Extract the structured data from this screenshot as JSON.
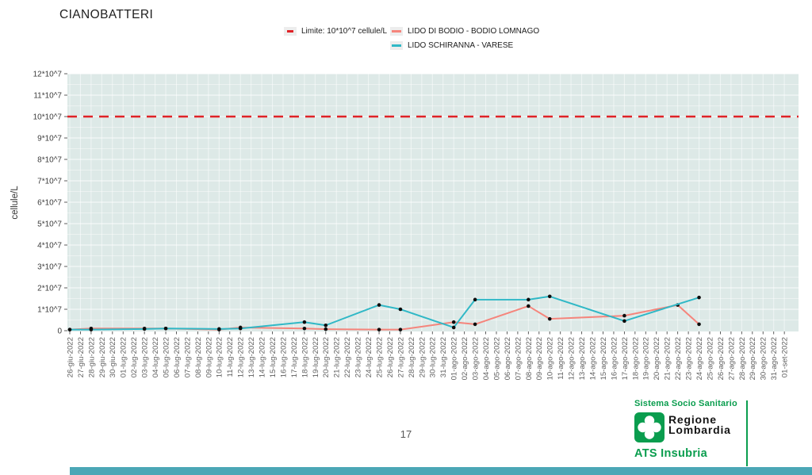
{
  "page": {
    "title": "CIANOBATTERI",
    "page_number": "17"
  },
  "legend": {
    "limit": {
      "label": "Limite: 10*10^7 cellule/L"
    },
    "bodio": {
      "label": "LIDO DI BODIO - BODIO LOMNAGO"
    },
    "schiranna": {
      "label": "LIDO SCHIRANNA - VARESE"
    }
  },
  "footer": {
    "sistema": "Sistema Socio Sanitario",
    "regione_line1": "Regione",
    "regione_line2": "Lombardia",
    "ats": "ATS Insubria",
    "brand_green": "#0a9d4e",
    "bar_teal": "#4ba7b6"
  },
  "chart_data": {
    "type": "line",
    "title": "CIANOBATTERI",
    "ylabel": "cellule/L",
    "y_unit": "values are in 10^7 cellule/L",
    "ylim": [
      0,
      12
    ],
    "yticks": [
      "0",
      "1*10^7",
      "2*10^7",
      "3*10^7",
      "4*10^7",
      "5*10^7",
      "6*10^7",
      "7*10^7",
      "8*10^7",
      "9*10^7",
      "10*10^7",
      "11*10^7",
      "12*10^7"
    ],
    "grid": true,
    "legend_position": "top",
    "plot_bg": "#dde9e7",
    "marker_color": "#0d0d0d",
    "limit": {
      "label": "Limite: 10*10^7 cellule/L",
      "value": 10,
      "color": "#e02227"
    },
    "categories": [
      "26-giu-2022",
      "27-giu-2022",
      "28-giu-2022",
      "29-giu-2022",
      "30-giu-2022",
      "01-lug-2022",
      "02-lug-2022",
      "03-lug-2022",
      "04-lug-2022",
      "05-lug-2022",
      "06-lug-2022",
      "07-lug-2022",
      "08-lug-2022",
      "09-lug-2022",
      "10-lug-2022",
      "11-lug-2022",
      "12-lug-2022",
      "13-lug-2022",
      "14-lug-2022",
      "15-lug-2022",
      "16-lug-2022",
      "17-lug-2022",
      "18-lug-2022",
      "19-lug-2022",
      "20-lug-2022",
      "21-lug-2022",
      "22-lug-2022",
      "23-lug-2022",
      "24-lug-2022",
      "25-lug-2022",
      "26-lug-2022",
      "27-lug-2022",
      "28-lug-2022",
      "29-lug-2022",
      "30-lug-2022",
      "31-lug-2022",
      "01-ago-2022",
      "02-ago-2022",
      "03-ago-2022",
      "04-ago-2022",
      "05-ago-2022",
      "06-ago-2022",
      "07-ago-2022",
      "08-ago-2022",
      "09-ago-2022",
      "10-ago-2022",
      "11-ago-2022",
      "12-ago-2022",
      "13-ago-2022",
      "14-ago-2022",
      "15-ago-2022",
      "16-ago-2022",
      "17-ago-2022",
      "18-ago-2022",
      "19-ago-2022",
      "20-ago-2022",
      "21-ago-2022",
      "22-ago-2022",
      "23-ago-2022",
      "24-ago-2022",
      "25-ago-2022",
      "26-ago-2022",
      "27-ago-2022",
      "28-ago-2022",
      "29-ago-2022",
      "30-ago-2022",
      "31-ago-2022",
      "01-set-2022"
    ],
    "series": [
      {
        "name": "LIDO DI BODIO - BODIO LOMNAGO",
        "color": "#f5857c",
        "points": [
          {
            "date": "26-giu-2022",
            "value": 0.05
          },
          {
            "date": "28-giu-2022",
            "value": 0.1
          },
          {
            "date": "03-lug-2022",
            "value": 0.1
          },
          {
            "date": "05-lug-2022",
            "value": 0.1
          },
          {
            "date": "10-lug-2022",
            "value": 0.05
          },
          {
            "date": "12-lug-2022",
            "value": 0.15
          },
          {
            "date": "18-lug-2022",
            "value": 0.1
          },
          {
            "date": "20-lug-2022",
            "value": 0.07
          },
          {
            "date": "25-lug-2022",
            "value": 0.05
          },
          {
            "date": "27-lug-2022",
            "value": 0.05
          },
          {
            "date": "01-ago-2022",
            "value": 0.4
          },
          {
            "date": "03-ago-2022",
            "value": 0.3
          },
          {
            "date": "08-ago-2022",
            "value": 1.15
          },
          {
            "date": "10-ago-2022",
            "value": 0.55
          },
          {
            "date": "17-ago-2022",
            "value": 0.7
          },
          {
            "date": "22-ago-2022",
            "value": 1.2
          },
          {
            "date": "24-ago-2022",
            "value": 0.3
          }
        ]
      },
      {
        "name": "LIDO SCHIRANNA - VARESE",
        "color": "#30b8c6",
        "points": [
          {
            "date": "26-giu-2022",
            "value": 0.05
          },
          {
            "date": "28-giu-2022",
            "value": 0.05
          },
          {
            "date": "03-lug-2022",
            "value": 0.08
          },
          {
            "date": "05-lug-2022",
            "value": 0.1
          },
          {
            "date": "10-lug-2022",
            "value": 0.08
          },
          {
            "date": "12-lug-2022",
            "value": 0.1
          },
          {
            "date": "18-lug-2022",
            "value": 0.4
          },
          {
            "date": "20-lug-2022",
            "value": 0.25
          },
          {
            "date": "25-lug-2022",
            "value": 1.2
          },
          {
            "date": "27-lug-2022",
            "value": 1.0
          },
          {
            "date": "01-ago-2022",
            "value": 0.15
          },
          {
            "date": "03-ago-2022",
            "value": 1.45
          },
          {
            "date": "08-ago-2022",
            "value": 1.45
          },
          {
            "date": "10-ago-2022",
            "value": 1.6
          },
          {
            "date": "17-ago-2022",
            "value": 0.45
          },
          {
            "date": "24-ago-2022",
            "value": 1.55
          }
        ]
      }
    ]
  }
}
